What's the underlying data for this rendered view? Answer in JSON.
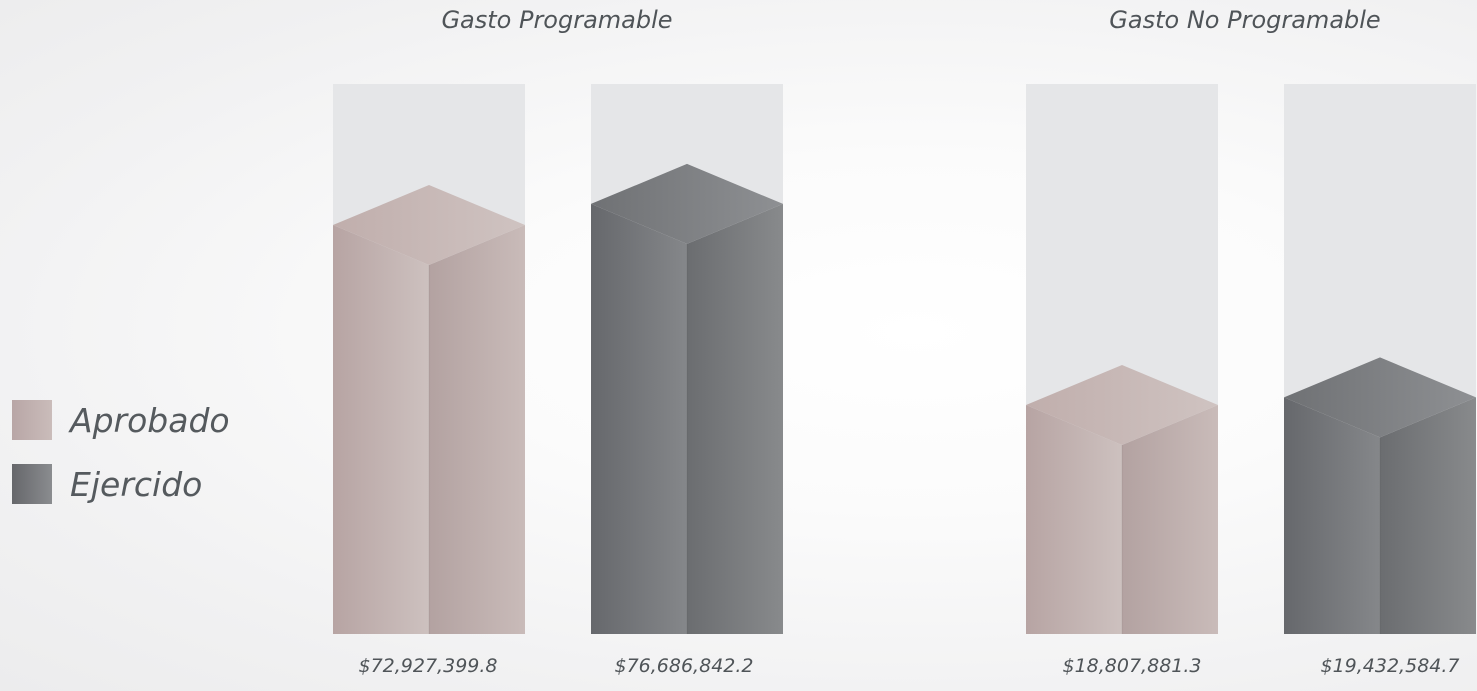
{
  "chart_data": {
    "type": "bar",
    "categories": [
      "Gasto Programable",
      "Gasto No Programable"
    ],
    "series": [
      {
        "name": "Aprobado",
        "values": [
          72927399.8,
          18807881.3
        ],
        "labels": [
          "$72,927,399.8",
          "$18,807,881.3"
        ],
        "color": "#bfafad"
      },
      {
        "name": "Ejercido",
        "values": [
          76686842.2,
          19432584.7
        ],
        "labels": [
          "$76,686,842.2",
          "$19,432,584.7"
        ],
        "color": "#7a7c80"
      }
    ],
    "track_color": "#e5e6e8",
    "legend": "left"
  },
  "legend": {
    "aprobado": "Aprobado",
    "ejercido": "Ejercido"
  }
}
